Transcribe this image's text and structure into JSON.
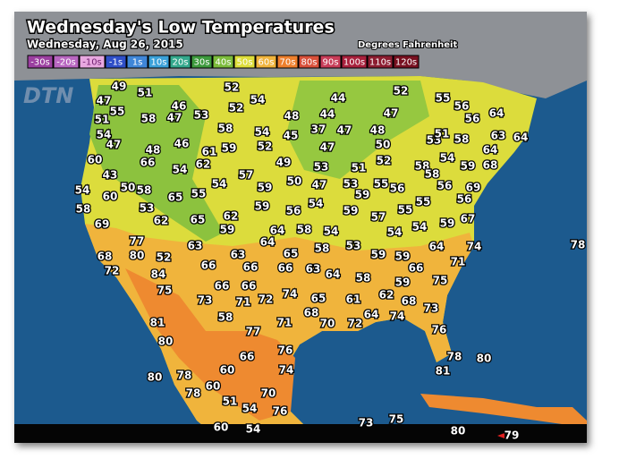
{
  "header": {
    "title": "Wednesday's Low Temperatures",
    "date": "Wednesday, Aug 26, 2015",
    "units": "Degrees Fahrenheit"
  },
  "logo": "DTN",
  "legend": [
    {
      "label": "-30s",
      "color": "#9b3fa0"
    },
    {
      "label": "-20s",
      "color": "#b866c0"
    },
    {
      "label": "-10s",
      "color": "#e8a8e0"
    },
    {
      "label": "-1s",
      "color": "#2f4fc8"
    },
    {
      "label": "1s",
      "color": "#3f86d8"
    },
    {
      "label": "10s",
      "color": "#3aa0d8"
    },
    {
      "label": "20s",
      "color": "#33a88c"
    },
    {
      "label": "30s",
      "color": "#3d9a3d"
    },
    {
      "label": "40s",
      "color": "#7cbc3c"
    },
    {
      "label": "50s",
      "color": "#dede3a"
    },
    {
      "label": "60s",
      "color": "#f0b43c"
    },
    {
      "label": "70s",
      "color": "#ee7f2c"
    },
    {
      "label": "80s",
      "color": "#d9503a"
    },
    {
      "label": "90s",
      "color": "#c83c58"
    },
    {
      "label": "100s",
      "color": "#a8203c"
    },
    {
      "label": "110s",
      "color": "#8c1c30"
    },
    {
      "label": "120s",
      "color": "#781020"
    }
  ],
  "temperatures": [
    49,
    51,
    47,
    55,
    46,
    53,
    52,
    54,
    52,
    51,
    58,
    47,
    44,
    52,
    55,
    56,
    64,
    44,
    47,
    48,
    58,
    54,
    45,
    37,
    47,
    48,
    56,
    54,
    47,
    48,
    46,
    61,
    59,
    52,
    47,
    50,
    53,
    51,
    58,
    63,
    64,
    60,
    66,
    54,
    62,
    49,
    53,
    51,
    52,
    58,
    58,
    54,
    59,
    64,
    68,
    43,
    57,
    50,
    47,
    53,
    55,
    56,
    56,
    69,
    54,
    50,
    58,
    60,
    65,
    55,
    54,
    59,
    59,
    56,
    58,
    53,
    59,
    56,
    54,
    59,
    57,
    55,
    55,
    69,
    62,
    65,
    62,
    58,
    54,
    54,
    54,
    59,
    67,
    77,
    59,
    64,
    64,
    58,
    53,
    64,
    74,
    78,
    63,
    65,
    59,
    59,
    68,
    80,
    52,
    63,
    71,
    72,
    84,
    66,
    66,
    66,
    63,
    64,
    58,
    66,
    75,
    75,
    66,
    66,
    74,
    59,
    62,
    73,
    71,
    72,
    65,
    61,
    68,
    73,
    68,
    58,
    64,
    74,
    70,
    72,
    81,
    71,
    77,
    76,
    80,
    76,
    78,
    80,
    66,
    74,
    60,
    81,
    78,
    80,
    60,
    78,
    70,
    51,
    54,
    76,
    73,
    75,
    60,
    54,
    80,
    79
  ]
}
